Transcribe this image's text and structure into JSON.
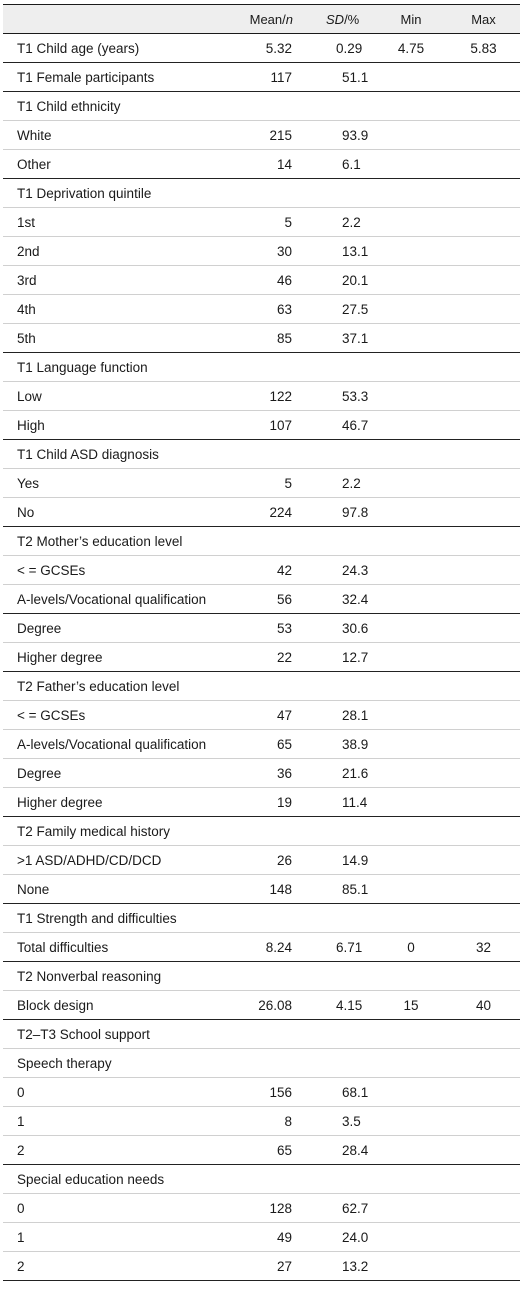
{
  "header": {
    "mean_prefix": "Mean/",
    "mean_italic": "n",
    "sd_italic": "SD",
    "sd_suffix": "/%",
    "min": "Min",
    "max": "Max"
  },
  "rows": [
    {
      "label": "T1 Child age (years)",
      "mean": "5.32",
      "sd": "0.29",
      "min": "4.75",
      "max": "5.83",
      "type": "main"
    },
    {
      "label": "T1 Female participants",
      "mean": "117",
      "sd": "51.1",
      "min": "",
      "max": "",
      "type": "main"
    },
    {
      "label": "T1 Child ethnicity",
      "mean": "",
      "sd": "",
      "min": "",
      "max": "",
      "type": "sub"
    },
    {
      "label": "White",
      "mean": "215",
      "sd": "93.9",
      "min": "",
      "max": "",
      "type": "sub"
    },
    {
      "label": "Other",
      "mean": "14",
      "sd": "6.1",
      "min": "",
      "max": "",
      "type": "main"
    },
    {
      "label": "T1 Deprivation quintile",
      "mean": "",
      "sd": "",
      "min": "",
      "max": "",
      "type": "sub"
    },
    {
      "label": "1st",
      "mean": "5",
      "sd": "2.2",
      "min": "",
      "max": "",
      "type": "sub"
    },
    {
      "label": "2nd",
      "mean": "30",
      "sd": "13.1",
      "min": "",
      "max": "",
      "type": "sub"
    },
    {
      "label": "3rd",
      "mean": "46",
      "sd": "20.1",
      "min": "",
      "max": "",
      "type": "sub"
    },
    {
      "label": "4th",
      "mean": "63",
      "sd": "27.5",
      "min": "",
      "max": "",
      "type": "sub"
    },
    {
      "label": "5th",
      "mean": "85",
      "sd": "37.1",
      "min": "",
      "max": "",
      "type": "main"
    },
    {
      "label": "T1 Language function",
      "mean": "",
      "sd": "",
      "min": "",
      "max": "",
      "type": "sub"
    },
    {
      "label": "Low",
      "mean": "122",
      "sd": "53.3",
      "min": "",
      "max": "",
      "type": "sub"
    },
    {
      "label": "High",
      "mean": "107",
      "sd": "46.7",
      "min": "",
      "max": "",
      "type": "main"
    },
    {
      "label": "T1 Child ASD diagnosis",
      "mean": "",
      "sd": "",
      "min": "",
      "max": "",
      "type": "sub"
    },
    {
      "label": "Yes",
      "mean": "5",
      "sd": "2.2",
      "min": "",
      "max": "",
      "type": "sub"
    },
    {
      "label": "No",
      "mean": "224",
      "sd": "97.8",
      "min": "",
      "max": "",
      "type": "main"
    },
    {
      "label": "T2 Mother’s education level",
      "mean": "",
      "sd": "",
      "min": "",
      "max": "",
      "type": "sub"
    },
    {
      "label": "< = GCSEs",
      "mean": "42",
      "sd": "24.3",
      "min": "",
      "max": "",
      "type": "sub"
    },
    {
      "label": "A-levels/Vocational qualification",
      "mean": "56",
      "sd": "32.4",
      "min": "",
      "max": "",
      "type": "main"
    },
    {
      "label": "Degree",
      "mean": "53",
      "sd": "30.6",
      "min": "",
      "max": "",
      "type": "sub"
    },
    {
      "label": "Higher degree",
      "mean": "22",
      "sd": "12.7",
      "min": "",
      "max": "",
      "type": "main"
    },
    {
      "label": "T2 Father’s education level",
      "mean": "",
      "sd": "",
      "min": "",
      "max": "",
      "type": "sub"
    },
    {
      "label": "< = GCSEs",
      "mean": "47",
      "sd": "28.1",
      "min": "",
      "max": "",
      "type": "sub"
    },
    {
      "label": "A-levels/Vocational qualification",
      "mean": "65",
      "sd": "38.9",
      "min": "",
      "max": "",
      "type": "sub"
    },
    {
      "label": "Degree",
      "mean": "36",
      "sd": "21.6",
      "min": "",
      "max": "",
      "type": "sub"
    },
    {
      "label": "Higher degree",
      "mean": "19",
      "sd": "11.4",
      "min": "",
      "max": "",
      "type": "main"
    },
    {
      "label": "T2 Family medical history",
      "mean": "",
      "sd": "",
      "min": "",
      "max": "",
      "type": "sub"
    },
    {
      "label": ">1 ASD/ADHD/CD/DCD",
      "mean": "26",
      "sd": "14.9",
      "min": "",
      "max": "",
      "type": "sub"
    },
    {
      "label": "None",
      "mean": "148",
      "sd": "85.1",
      "min": "",
      "max": "",
      "type": "main"
    },
    {
      "label": "T1 Strength and difficulties",
      "mean": "",
      "sd": "",
      "min": "",
      "max": "",
      "type": "sub"
    },
    {
      "label": "Total difficulties",
      "mean": "8.24",
      "sd": "6.71",
      "min": "0",
      "max": "32",
      "type": "main"
    },
    {
      "label": "T2 Nonverbal reasoning",
      "mean": "",
      "sd": "",
      "min": "",
      "max": "",
      "type": "sub"
    },
    {
      "label": "Block design",
      "mean": "26.08",
      "sd": "4.15",
      "min": "15",
      "max": "40",
      "type": "main"
    },
    {
      "label": "T2–T3 School support",
      "mean": "",
      "sd": "",
      "min": "",
      "max": "",
      "type": "sub"
    },
    {
      "label": "Speech therapy",
      "mean": "",
      "sd": "",
      "min": "",
      "max": "",
      "type": "sub"
    },
    {
      "label": "0",
      "mean": "156",
      "sd": "68.1",
      "min": "",
      "max": "",
      "type": "sub"
    },
    {
      "label": "1",
      "mean": "8",
      "sd": "3.5",
      "min": "",
      "max": "",
      "type": "sub"
    },
    {
      "label": "2",
      "mean": "65",
      "sd": "28.4",
      "min": "",
      "max": "",
      "type": "main"
    },
    {
      "label": "Special education needs",
      "mean": "",
      "sd": "",
      "min": "",
      "max": "",
      "type": "sub"
    },
    {
      "label": "0",
      "mean": "128",
      "sd": "62.7",
      "min": "",
      "max": "",
      "type": "sub"
    },
    {
      "label": "1",
      "mean": "49",
      "sd": "24.0",
      "min": "",
      "max": "",
      "type": "sub"
    },
    {
      "label": "2",
      "mean": "27",
      "sd": "13.2",
      "min": "",
      "max": "",
      "type": "main"
    }
  ]
}
